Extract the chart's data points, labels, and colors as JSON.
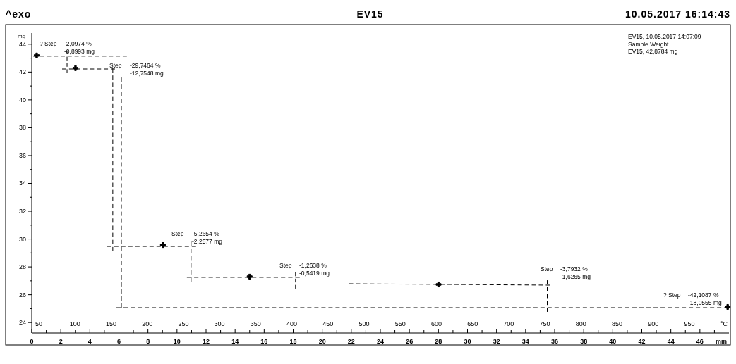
{
  "chart_data": {
    "type": "line",
    "title": "EV15",
    "xlabel": "min",
    "ylabel": "mg",
    "x2label": "°C",
    "line_style": "dashed",
    "xlim": [
      0,
      48
    ],
    "ylim": [
      23.25,
      44.8
    ],
    "x2lim": [
      40.2,
      1004.7
    ],
    "xticks": [
      0,
      {
        "value": 1,
        "label": null
      },
      2,
      {
        "value": 3,
        "label": null
      },
      4,
      {
        "value": 5,
        "label": null
      },
      6,
      {
        "value": 7,
        "label": null
      },
      8,
      {
        "value": 9,
        "label": null
      },
      10,
      {
        "value": 11,
        "label": null
      },
      12,
      {
        "value": 13,
        "label": null
      },
      14,
      {
        "value": 15,
        "label": null
      },
      16,
      {
        "value": 17,
        "label": null
      },
      18,
      {
        "value": 19,
        "label": null
      },
      20,
      {
        "value": 21,
        "label": null
      },
      22,
      {
        "value": 23,
        "label": null
      },
      24,
      {
        "value": 25,
        "label": null
      },
      26,
      {
        "value": 27,
        "label": null
      },
      28,
      {
        "value": 29,
        "label": null
      },
      30,
      {
        "value": 31,
        "label": null
      },
      32,
      {
        "value": 33,
        "label": null
      },
      34,
      {
        "value": 35,
        "label": null
      },
      36,
      {
        "value": 37,
        "label": null
      },
      38,
      {
        "value": 39,
        "label": null
      },
      40,
      {
        "value": 41,
        "label": null
      },
      42,
      {
        "value": 43,
        "label": null
      },
      44,
      {
        "value": 45,
        "label": null
      },
      46,
      {
        "value": 47,
        "label": null
      }
    ],
    "yticks": [
      24,
      {
        "value": 25,
        "label": null
      },
      26,
      {
        "value": 27,
        "label": null
      },
      28,
      {
        "value": 29,
        "label": null
      },
      30,
      {
        "value": 31,
        "label": null
      },
      32,
      {
        "value": 33,
        "label": null
      },
      34,
      {
        "value": 35,
        "label": null
      },
      36,
      {
        "value": 37,
        "label": null
      },
      38,
      {
        "value": 39,
        "label": null
      },
      40,
      {
        "value": 41,
        "label": null
      },
      42,
      {
        "value": 43,
        "label": null
      },
      44
    ],
    "x2ticks": [
      50,
      100,
      150,
      200,
      250,
      300,
      350,
      400,
      450,
      500,
      550,
      600,
      650,
      700,
      750,
      800,
      850,
      900,
      950
    ],
    "series": [
      {
        "color": "#000000",
        "x": [
          0.1,
          6.55
        ],
        "values": [
          43.14,
          43.14
        ]
      },
      {
        "color": "#000000",
        "x": [
          2.43,
          2.43
        ],
        "values": [
          43.55,
          41.93
        ]
      },
      {
        "color": "#000000",
        "x": [
          2.09,
          5.73
        ],
        "values": [
          42.22,
          42.22
        ]
      },
      {
        "color": "#000000",
        "x": [
          5.58,
          5.58
        ],
        "values": [
          42.27,
          29.12
        ]
      },
      {
        "color": "#000000",
        "x": [
          6.17,
          6.17
        ],
        "values": [
          41.61,
          25.07
        ]
      },
      {
        "color": "#000000",
        "x": [
          5.19,
          11.31
        ],
        "values": [
          29.47,
          29.47
        ]
      },
      {
        "color": "#000000",
        "x": [
          10.97,
          10.97
        ],
        "values": [
          29.83,
          26.94
        ]
      },
      {
        "color": "#000000",
        "x": [
          10.68,
          18.45
        ],
        "values": [
          27.25,
          27.25
        ]
      },
      {
        "color": "#000000",
        "x": [
          18.16,
          18.16
        ],
        "values": [
          27.6,
          26.44
        ]
      },
      {
        "color": "#000000",
        "x": [
          21.84,
          35.68
        ],
        "values": [
          26.79,
          26.69
        ]
      },
      {
        "color": "#000000",
        "x": [
          35.49,
          35.49
        ],
        "values": [
          27.04,
          24.77
        ]
      },
      {
        "color": "#000000",
        "x": [
          5.83,
          47.96
        ],
        "values": [
          25.07,
          25.07
        ]
      },
      {
        "type": "scatter",
        "color": "#000000",
        "marker": "cross",
        "x": [
          0.34,
          3.01,
          9.03,
          15.0,
          28.01,
          47.91
        ],
        "values": [
          43.19,
          42.28,
          29.57,
          27.3,
          26.74,
          25.12
        ]
      }
    ],
    "annotations": [
      "^exo",
      "10.05.2017 16:14:43",
      "EV15, 10.05.2017 14:07:09\nSample Weight\nEV15, 42,8784 mg",
      "? Step",
      "-2,0974 %\n-0,8993 mg",
      "Step",
      "-29,7464 %\n-12,7548 mg",
      "Step",
      "-5,2654 %\n-2,2577 mg",
      "Step",
      "-1,2638 %\n-0,5419 mg",
      "Step",
      "-3,7932 %\n-1,6265 mg",
      "? Step",
      "-42,1087 %\n-18,0555 mg"
    ]
  }
}
